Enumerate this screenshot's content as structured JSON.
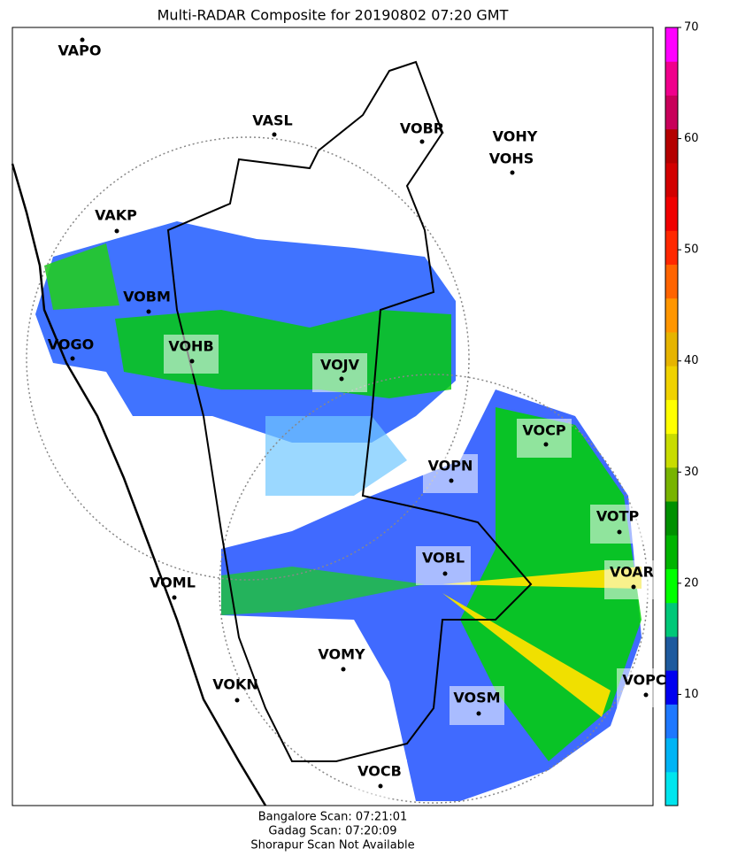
{
  "title": "Multi-RADAR Composite for 20190802 07:20 GMT",
  "stations": [
    "VAPO",
    "VASL",
    "VOBR",
    "VOHY",
    "VOHS",
    "VAKP",
    "VOBM",
    "VOGO",
    "VOHB",
    "VOJV",
    "VOCP",
    "VOPN",
    "VOTP",
    "VOBL",
    "VOAR",
    "VOML",
    "VOMY",
    "VOKN",
    "VOPC",
    "VOSM",
    "VOCB"
  ],
  "footer": [
    "Bangalore Scan: 07:21:01",
    "Gadag Scan: 07:20:09",
    "Shorapur Scan Not Available"
  ],
  "colorbar": {
    "lim": [
      0,
      70
    ],
    "ticks": [
      10,
      20,
      30,
      40,
      50,
      60,
      70
    ],
    "colors": [
      "#00e5ee",
      "#00b4f5",
      "#1e78ff",
      "#0000f0",
      "#1e5a9e",
      "#00c878",
      "#00ff00",
      "#00b400",
      "#009000",
      "#78b400",
      "#c8dc00",
      "#ffff00",
      "#f0d200",
      "#e6b400",
      "#ff9600",
      "#ff6400",
      "#ff2800",
      "#f00000",
      "#d20000",
      "#b40000",
      "#c8005a",
      "#f0008c",
      "#ff00ff"
    ]
  }
}
